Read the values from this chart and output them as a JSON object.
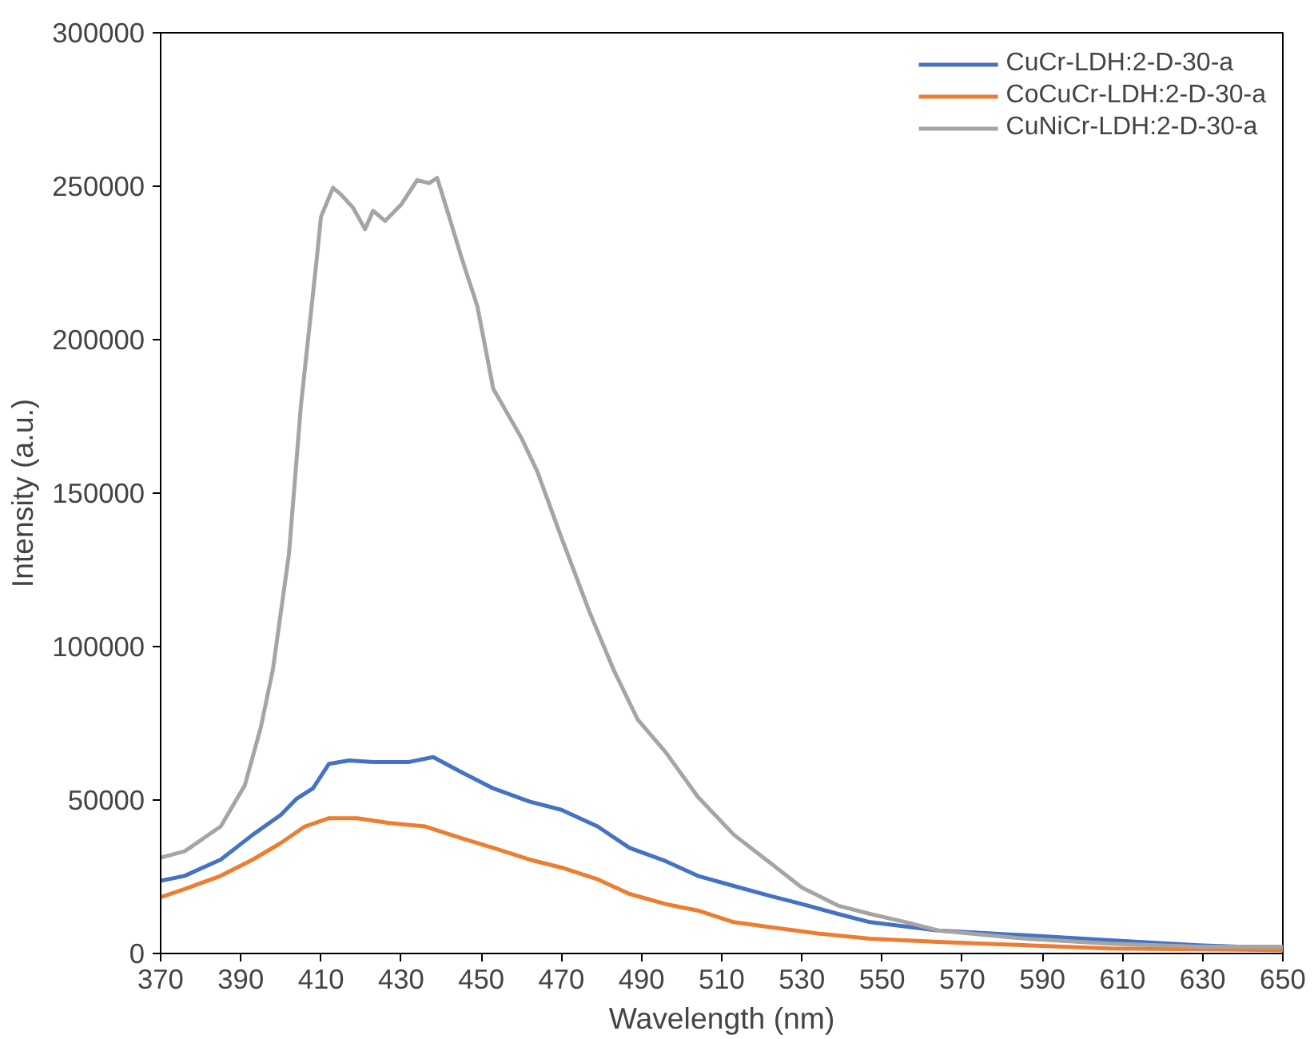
{
  "chart_data": {
    "type": "line",
    "xlabel": "Wavelength (nm)",
    "ylabel": "Intensity (a.u.)",
    "xlim": [
      370,
      650
    ],
    "xticks": [
      370,
      390,
      410,
      430,
      450,
      470,
      490,
      510,
      530,
      550,
      570,
      590,
      610,
      630,
      650
    ],
    "ylim": [
      0,
      300000
    ],
    "yticks": [
      0,
      50000,
      100000,
      150000,
      200000,
      250000,
      300000
    ],
    "grid": false,
    "legend": "top right",
    "marker": "none",
    "line_style": "solid",
    "series": [
      {
        "name": "CuCr-LDH:2-D-30-a",
        "color": "#4472c4",
        "x": [
          370,
          376,
          385,
          393,
          400,
          404,
          408,
          412,
          417,
          423,
          432,
          438,
          445,
          453,
          462,
          470,
          479,
          487,
          496,
          504,
          513,
          522,
          530,
          539,
          547,
          564,
          586,
          607,
          629,
          650
        ],
        "values": [
          23700,
          25300,
          30600,
          38700,
          45200,
          50500,
          53800,
          61800,
          62900,
          62400,
          62400,
          64000,
          59100,
          53800,
          49500,
          46800,
          41400,
          34400,
          30100,
          25300,
          22000,
          18800,
          16100,
          12900,
          10200,
          7500,
          5900,
          4300,
          2700,
          1600
        ]
      },
      {
        "name": "CoCuCr-LDH:2-D-30-a",
        "color": "#ed7d31",
        "x": [
          370,
          376,
          385,
          393,
          400,
          406,
          412,
          419,
          427,
          436,
          445,
          453,
          462,
          470,
          479,
          487,
          496,
          504,
          513,
          522,
          534,
          547,
          564,
          586,
          607,
          650
        ],
        "values": [
          18300,
          21000,
          25300,
          30600,
          36000,
          41400,
          44100,
          44100,
          42500,
          41400,
          37600,
          34400,
          30600,
          28000,
          24200,
          19400,
          16100,
          14000,
          10200,
          8600,
          6500,
          4800,
          3800,
          2700,
          1600,
          1100
        ]
      },
      {
        "name": "CuNiCr-LDH:2-D-30-a",
        "color": "#a5a5a5",
        "x": [
          370,
          376,
          385,
          391,
          395,
          398,
          402,
          405,
          409,
          410,
          413,
          415,
          418,
          421,
          423,
          426,
          430,
          434,
          437,
          439,
          442,
          445,
          449,
          453,
          460,
          464,
          470,
          477,
          483,
          489,
          496,
          504,
          513,
          522,
          530,
          539,
          547,
          556,
          564,
          586,
          607,
          629,
          650
        ],
        "values": [
          31200,
          33300,
          41400,
          54800,
          73700,
          92500,
          130000,
          178500,
          227000,
          240000,
          249500,
          247300,
          243000,
          236000,
          242000,
          238700,
          244000,
          252000,
          251000,
          252700,
          240000,
          227000,
          211000,
          184000,
          168000,
          157000,
          135500,
          111300,
          92500,
          76300,
          65600,
          51100,
          38700,
          29600,
          21500,
          15600,
          12900,
          10200,
          7500,
          4800,
          3200,
          2200,
          2200
        ]
      }
    ]
  }
}
